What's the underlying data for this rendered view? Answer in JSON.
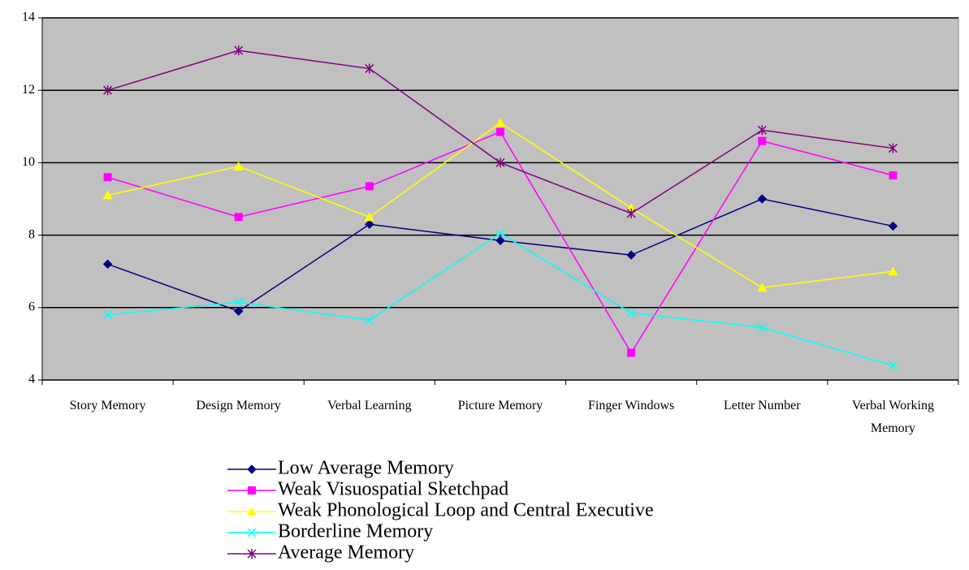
{
  "chart_data": {
    "type": "line",
    "categories": [
      "Story Memory",
      "Design Memory",
      "Verbal Learning",
      "Picture Memory",
      "Finger Windows",
      "Letter Number",
      "Verbal Working Memory"
    ],
    "series": [
      {
        "name": "Low Average Memory",
        "color": "#000080",
        "marker": "diamond",
        "values": [
          7.2,
          5.9,
          8.3,
          7.85,
          7.45,
          9.0,
          8.25
        ]
      },
      {
        "name": "Weak Visuospatial Sketchpad",
        "color": "#ff00ff",
        "marker": "square",
        "values": [
          9.6,
          8.5,
          9.35,
          10.85,
          4.75,
          10.6,
          9.65
        ]
      },
      {
        "name": "Weak Phonological Loop and Central Executive",
        "color": "#ffff00",
        "marker": "triangle",
        "values": [
          9.1,
          9.9,
          8.5,
          11.1,
          8.75,
          6.55,
          7.0
        ]
      },
      {
        "name": "Borderline Memory",
        "color": "#00ffff",
        "marker": "x",
        "values": [
          5.8,
          6.15,
          5.65,
          8.05,
          5.85,
          5.45,
          4.4
        ]
      },
      {
        "name": "Average Memory",
        "color": "#800080",
        "marker": "star",
        "values": [
          12.0,
          13.1,
          12.6,
          10.0,
          8.6,
          10.9,
          10.4
        ]
      }
    ],
    "ylim": [
      4,
      14
    ],
    "yticks": [
      4,
      6,
      8,
      10,
      12,
      14
    ],
    "grid": true
  }
}
